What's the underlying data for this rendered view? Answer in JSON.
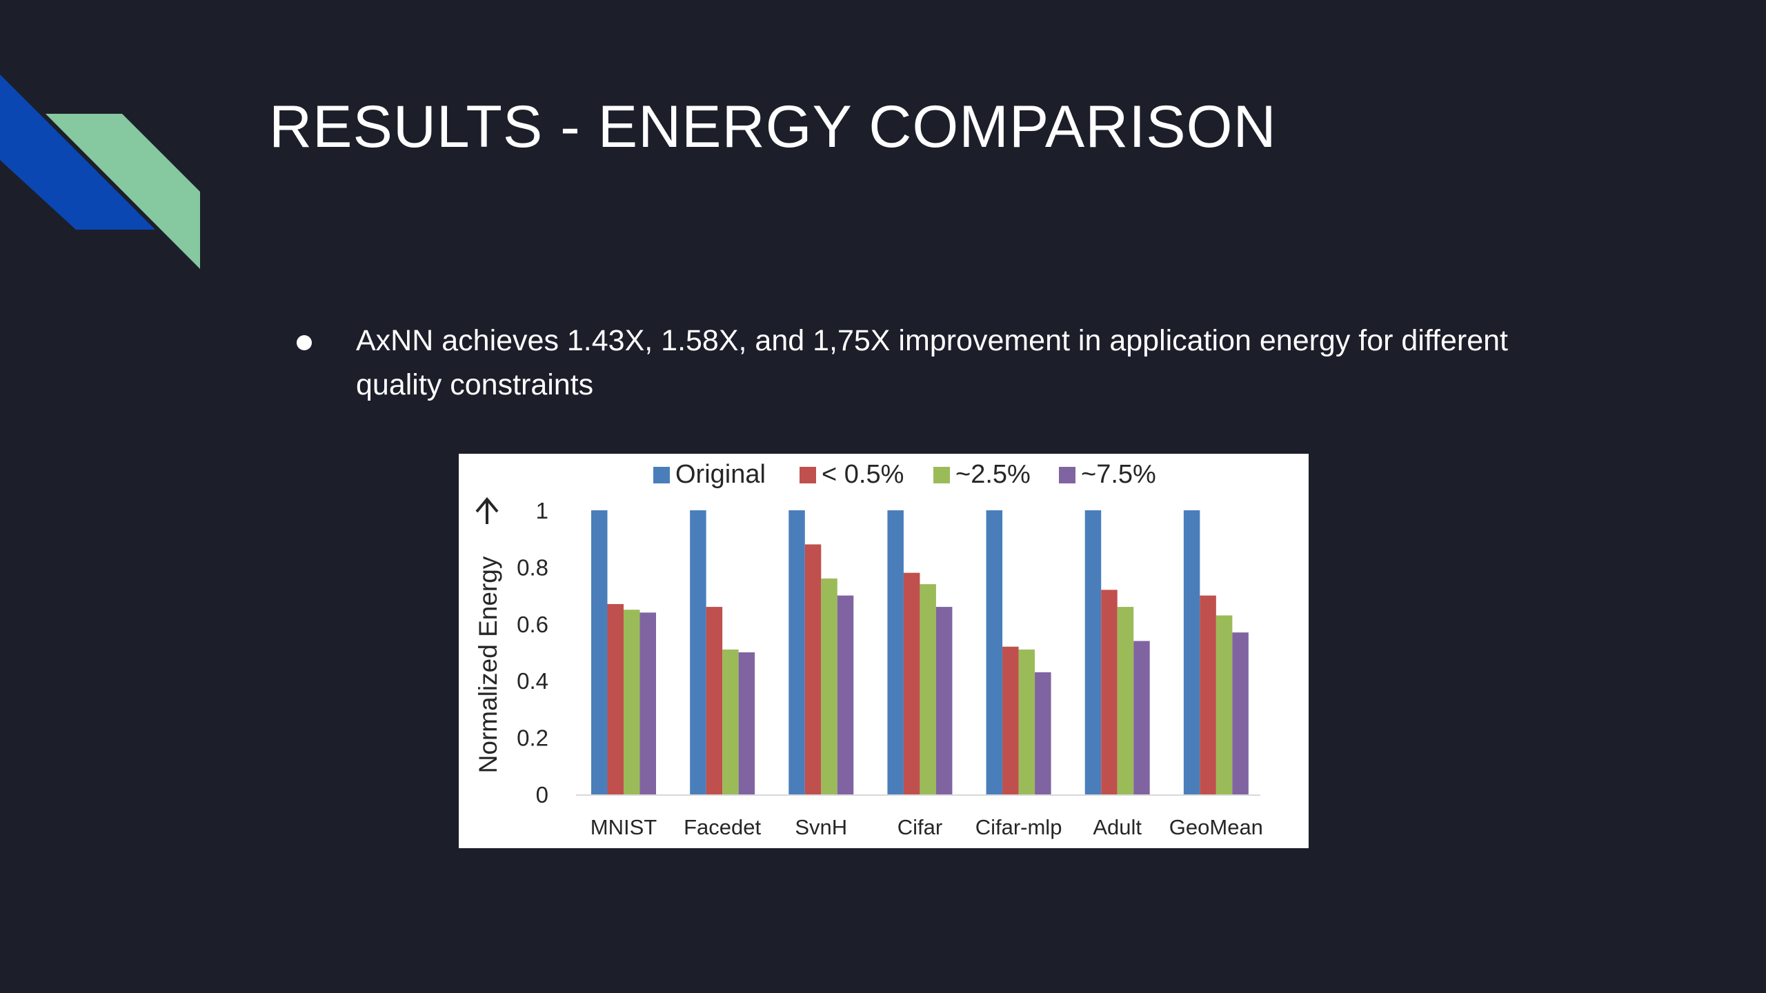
{
  "slide": {
    "title": "RESULTS - ENERGY COMPARISON",
    "bullets": [
      "AxNN achieves 1.43X, 1.58X, and 1,75X improvement in application energy for different quality constraints"
    ],
    "theme_colors": {
      "background": "#1c1f2a",
      "accent_blue": "#0b47b3",
      "accent_green": "#86c8a0"
    }
  },
  "chart_data": {
    "type": "bar",
    "title": "",
    "xlabel": "",
    "ylabel": "Normalized Energy",
    "ylim": [
      0,
      1
    ],
    "yticks": [
      "0",
      "0.2",
      "0.4",
      "0.6",
      "0.8",
      "1"
    ],
    "categories": [
      "MNIST",
      "Facedet",
      "SvnH",
      "Cifar",
      "Cifar-mlp",
      "Adult",
      "GeoMean"
    ],
    "series": [
      {
        "name": "Original",
        "color": "#4a7ebb",
        "values": [
          1.0,
          1.0,
          1.0,
          1.0,
          1.0,
          1.0,
          1.0
        ]
      },
      {
        "name": "< 0.5%",
        "color": "#c0504d",
        "values": [
          0.67,
          0.66,
          0.88,
          0.78,
          0.52,
          0.72,
          0.7
        ]
      },
      {
        "name": "~2.5%",
        "color": "#9bbb59",
        "values": [
          0.65,
          0.51,
          0.76,
          0.74,
          0.51,
          0.66,
          0.63
        ]
      },
      {
        "name": "~7.5%",
        "color": "#8064a2",
        "values": [
          0.64,
          0.5,
          0.7,
          0.66,
          0.43,
          0.54,
          0.57
        ]
      }
    ],
    "legend_position": "top",
    "grid": false
  }
}
